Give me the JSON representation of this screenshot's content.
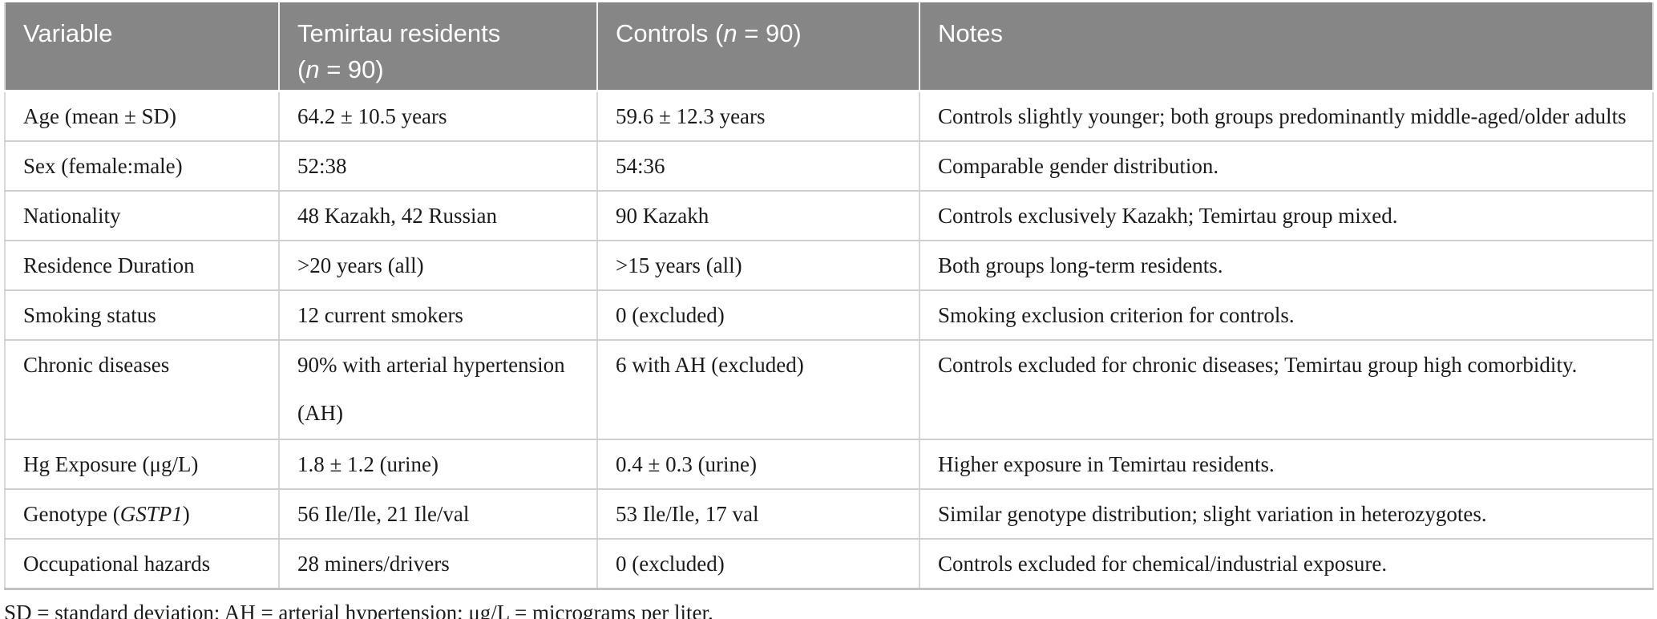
{
  "colors": {
    "header_bg": "#868686",
    "header_text": "#ffffff",
    "body_text": "#1b1b1b",
    "row_divider": "#cfcfcf",
    "column_divider": "#d6d6d6"
  },
  "table": {
    "header": {
      "variable": "Variable",
      "temirtau_line1": "Temirtau residents",
      "temirtau_line2_pre": "(",
      "temirtau_n": "n",
      "temirtau_line2_post": " = 90)",
      "controls_pre": "Controls (",
      "controls_n": "n",
      "controls_post": " = 90)",
      "notes": "Notes"
    },
    "rows": [
      {
        "variable": "Age (mean ± SD)",
        "temirtau": "64.2 ± 10.5 years",
        "controls": "59.6 ± 12.3 years",
        "notes": "Controls slightly younger; both groups predominantly middle-aged/older adults"
      },
      {
        "variable": "Sex (female:male)",
        "temirtau": "52:38",
        "controls": "54:36",
        "notes": "Comparable gender distribution."
      },
      {
        "variable": "Nationality",
        "temirtau": "48 Kazakh, 42 Russian",
        "controls": "90 Kazakh",
        "notes": "Controls exclusively Kazakh; Temirtau group mixed."
      },
      {
        "variable": "Residence Duration",
        "temirtau": ">20 years (all)",
        "controls": ">15 years (all)",
        "notes": "Both groups long-term residents."
      },
      {
        "variable": "Smoking status",
        "temirtau": "12 current smokers",
        "controls": "0 (excluded)",
        "notes": "Smoking exclusion criterion for controls."
      },
      {
        "variable": "Chronic diseases",
        "temirtau": "90% with arterial hypertension (AH)",
        "controls": "6 with AH (excluded)",
        "notes": "Controls excluded for chronic diseases; Temirtau group high comorbidity."
      },
      {
        "variable": "Hg Exposure (μg/L)",
        "temirtau": "1.8 ± 1.2 (urine)",
        "controls": "0.4 ± 0.3 (urine)",
        "notes": "Higher exposure in Temirtau residents."
      },
      {
        "variable_pre": "Genotype (",
        "variable_italic": "GSTP1",
        "variable_post": ")",
        "temirtau": "56 Ile/Ile, 21 Ile/val",
        "controls": "53 Ile/Ile, 17 val",
        "notes": "Similar genotype distribution; slight variation in heterozygotes."
      },
      {
        "variable": "Occupational hazards",
        "temirtau": "28 miners/drivers",
        "controls": "0 (excluded)",
        "notes": "Controls excluded for chemical/industrial exposure."
      }
    ],
    "footnote": "SD = standard deviation; AH = arterial hypertension; μg/L = micrograms per liter."
  }
}
